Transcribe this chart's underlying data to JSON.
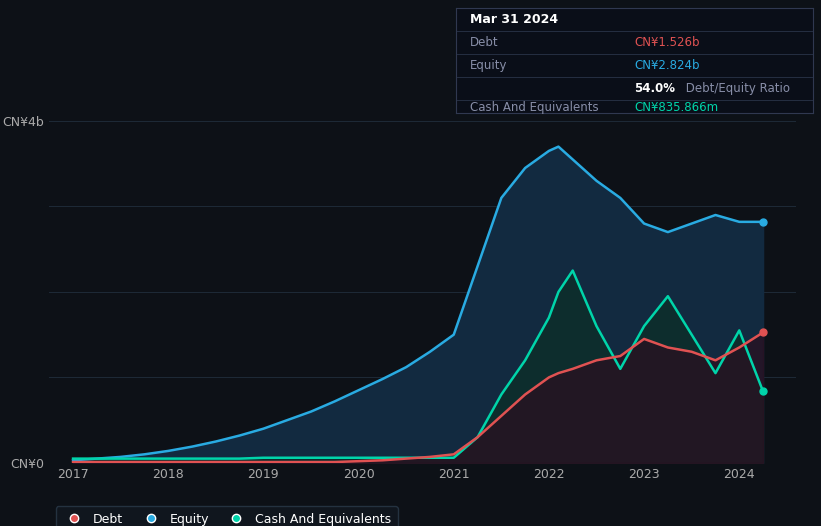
{
  "bg_color": "#0d1117",
  "plot_bg_color": "#0d1117",
  "grid_color": "#1e2a38",
  "ylim": [
    0,
    4.0
  ],
  "xlim_start": 2016.75,
  "xlim_end": 2024.6,
  "xtick_labels": [
    "2017",
    "2018",
    "2019",
    "2020",
    "2021",
    "2022",
    "2023",
    "2024"
  ],
  "xtick_positions": [
    2017,
    2018,
    2019,
    2020,
    2021,
    2022,
    2023,
    2024
  ],
  "equity_color": "#29abe2",
  "equity_fill": "#1a3a5c",
  "debt_color": "#e05252",
  "debt_fill": "#3a1020",
  "cash_color": "#00d4aa",
  "cash_fill": "#0a2e2a",
  "legend_bg": "#111820",
  "legend_border": "#2a3a4a",
  "years": [
    2017.0,
    2017.25,
    2017.5,
    2017.75,
    2018.0,
    2018.25,
    2018.5,
    2018.75,
    2019.0,
    2019.25,
    2019.5,
    2019.75,
    2020.0,
    2020.25,
    2020.5,
    2020.75,
    2021.0,
    2021.25,
    2021.5,
    2021.75,
    2022.0,
    2022.1,
    2022.25,
    2022.5,
    2022.75,
    2023.0,
    2023.25,
    2023.5,
    2023.75,
    2024.0,
    2024.25
  ],
  "equity": [
    0.03,
    0.05,
    0.07,
    0.1,
    0.14,
    0.19,
    0.25,
    0.32,
    0.4,
    0.5,
    0.6,
    0.72,
    0.85,
    0.98,
    1.12,
    1.3,
    1.5,
    2.3,
    3.1,
    3.45,
    3.65,
    3.7,
    3.55,
    3.3,
    3.1,
    2.8,
    2.7,
    2.8,
    2.9,
    2.82,
    2.82
  ],
  "debt": [
    0.01,
    0.01,
    0.01,
    0.01,
    0.01,
    0.01,
    0.01,
    0.01,
    0.01,
    0.01,
    0.01,
    0.01,
    0.02,
    0.03,
    0.05,
    0.07,
    0.1,
    0.3,
    0.55,
    0.8,
    1.0,
    1.05,
    1.1,
    1.2,
    1.25,
    1.45,
    1.35,
    1.3,
    1.2,
    1.35,
    1.526
  ],
  "cash": [
    0.05,
    0.05,
    0.05,
    0.05,
    0.05,
    0.05,
    0.05,
    0.05,
    0.06,
    0.06,
    0.06,
    0.06,
    0.06,
    0.06,
    0.06,
    0.06,
    0.06,
    0.3,
    0.8,
    1.2,
    1.7,
    2.0,
    2.25,
    1.6,
    1.1,
    1.6,
    1.95,
    1.5,
    1.05,
    1.55,
    0.836
  ],
  "tooltip_title": "Mar 31 2024",
  "tooltip_debt_label": "Debt",
  "tooltip_debt_value": "CN¥1.526b",
  "tooltip_equity_label": "Equity",
  "tooltip_equity_value": "CN¥2.824b",
  "tooltip_ratio": "54.0%",
  "tooltip_ratio_text": " Debt/Equity Ratio",
  "tooltip_cash_label": "Cash And Equivalents",
  "tooltip_cash_value": "CN¥835.866m"
}
